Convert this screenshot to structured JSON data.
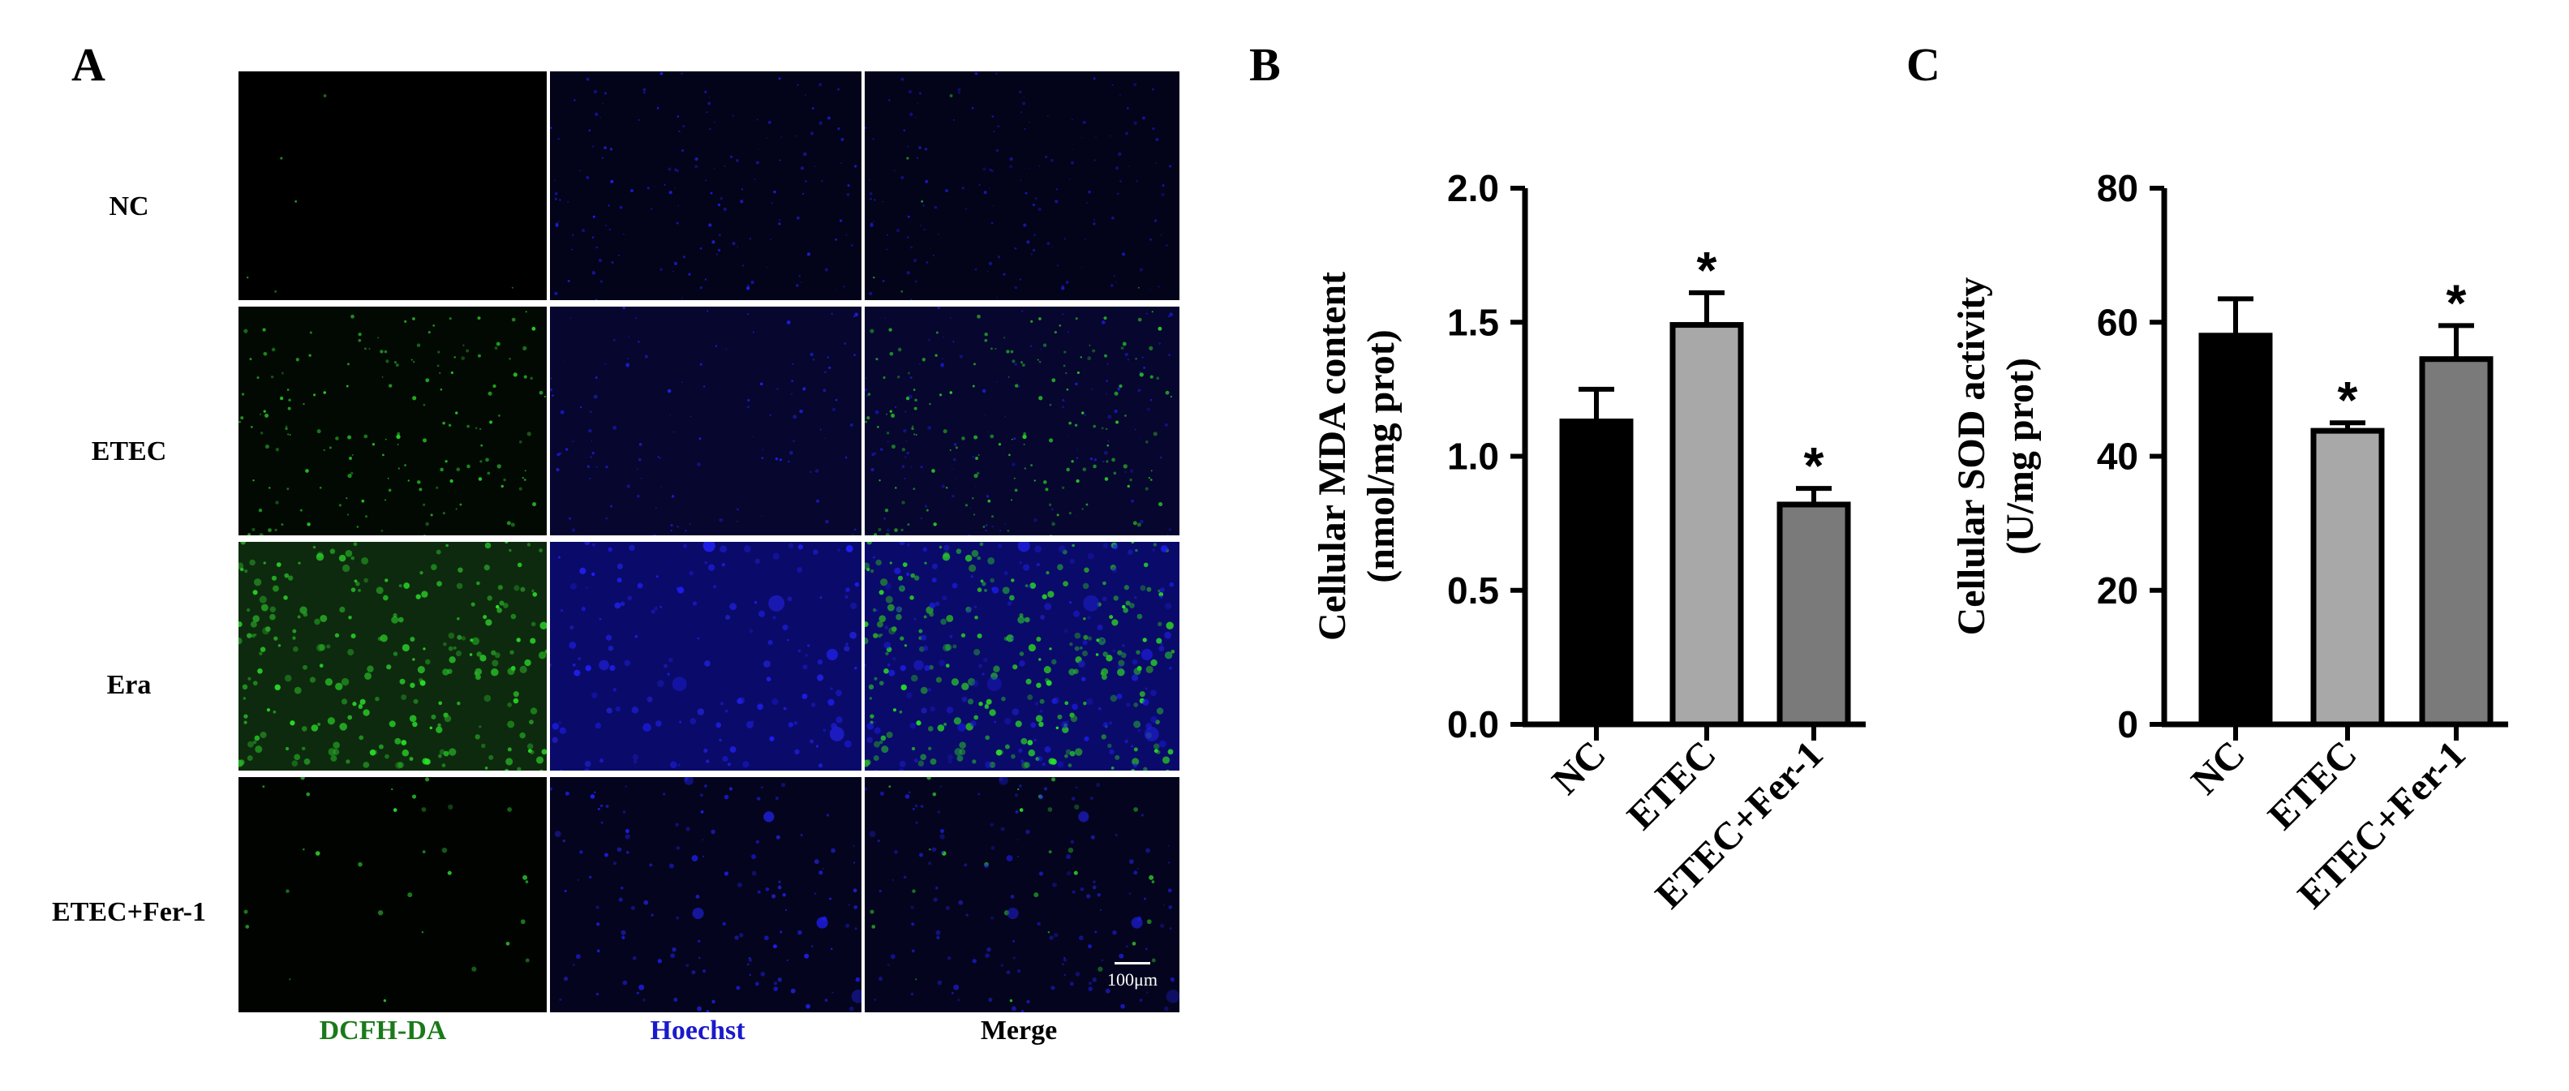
{
  "panels": {
    "a": "A",
    "b": "B",
    "c": "C"
  },
  "micrograph": {
    "rows": [
      "NC",
      "ETEC",
      "Era",
      "ETEC+Fer-1"
    ],
    "columns": [
      {
        "label": "DCFH-DA",
        "color": "#1a7a1a"
      },
      {
        "label": "Hoechst",
        "color": "#1a1acc"
      },
      {
        "label": "Merge",
        "color": "#000000"
      }
    ],
    "scale_bar": "100μm"
  },
  "chart_data": [
    {
      "type": "bar",
      "categories": [
        "NC",
        "ETEC",
        "ETEC+Fer-1"
      ],
      "values": [
        1.13,
        1.49,
        0.82
      ],
      "errors": [
        0.12,
        0.12,
        0.06
      ],
      "significance": [
        "",
        "*",
        "*"
      ],
      "colors": [
        "#000000",
        "#a8a8a8",
        "#7a7a7a"
      ],
      "ylabel": "Cellular MDA content",
      "ylabel2": "(nmol/mg prot)",
      "ylim": [
        0,
        2.0
      ],
      "yticks": [
        "0.0",
        "0.5",
        "1.0",
        "1.5",
        "2.0"
      ],
      "tick_values": [
        0,
        0.5,
        1.0,
        1.5,
        2.0
      ]
    },
    {
      "type": "bar",
      "categories": [
        "NC",
        "ETEC",
        "ETEC+Fer-1"
      ],
      "values": [
        58,
        43.8,
        54.5
      ],
      "errors": [
        5.5,
        1.2,
        5
      ],
      "significance": [
        "",
        "*",
        "*"
      ],
      "colors": [
        "#000000",
        "#a8a8a8",
        "#7a7a7a"
      ],
      "ylabel": "Cellular SOD activity",
      "ylabel2": "(U/mg prot)",
      "ylim": [
        0,
        80
      ],
      "yticks": [
        "0",
        "20",
        "40",
        "60",
        "80"
      ],
      "tick_values": [
        0,
        20,
        40,
        60,
        80
      ]
    }
  ]
}
